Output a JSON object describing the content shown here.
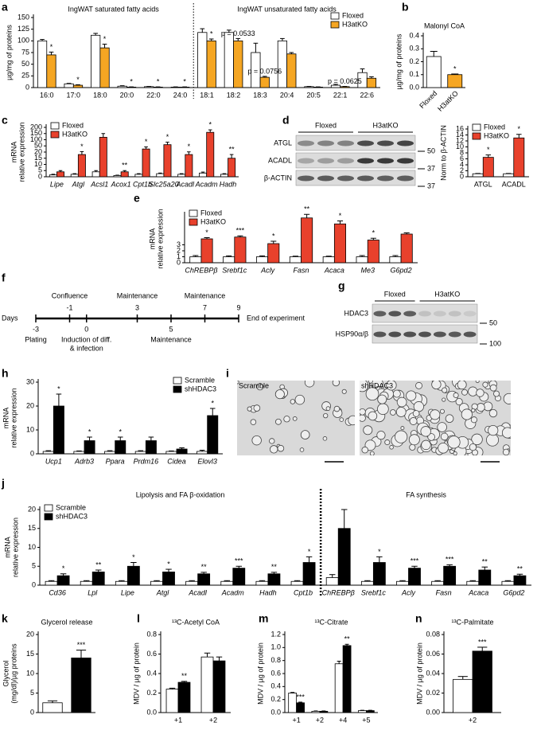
{
  "chart_data": [
    {
      "panel": "a",
      "type": "bar",
      "ylabel": [
        "µg/mg of proteins"
      ],
      "groups": [
        {
          "title": "IngWAT saturated fatty acids",
          "categories": [
            "16:0",
            "17:0",
            "18:0",
            "20:0",
            "22:0",
            "24:0"
          ]
        },
        {
          "title": "IngWAT unsaturated fatty acids",
          "categories": [
            "18:1",
            "18:2",
            "18:3",
            "20:4",
            "20:5",
            "22:1",
            "22:6"
          ]
        }
      ],
      "series": [
        {
          "name": "Floxed",
          "color": "#ffffff",
          "values": [
            100,
            8,
            112,
            3,
            2,
            1,
            118,
            118,
            75,
            100,
            2,
            5,
            32
          ],
          "errors": [
            3,
            1,
            4,
            1,
            0.5,
            0.5,
            8,
            5,
            20,
            5,
            0.5,
            2,
            8
          ]
        },
        {
          "name": "H3atKO",
          "color": "#f5a623",
          "values": [
            70,
            5,
            85,
            1,
            1,
            1,
            100,
            100,
            22,
            72,
            1,
            2,
            20
          ],
          "errors": [
            6,
            1,
            8,
            0.5,
            0.5,
            0.5,
            4,
            5,
            2,
            3,
            0.5,
            0.5,
            3
          ],
          "significance": [
            "*",
            "*",
            "*",
            "*",
            "*",
            "*",
            "*",
            "p = 0.0533",
            "p = 0.0756",
            null,
            null,
            "p = 0.0625",
            null
          ]
        }
      ],
      "ylim": [
        0,
        150
      ],
      "yticks": [
        0,
        25,
        50,
        75,
        100,
        125,
        150
      ],
      "legend": "upper right"
    },
    {
      "panel": "b",
      "type": "bar",
      "title": "Malonyl CoA",
      "ylabel": [
        "µg/mg of proteins"
      ],
      "categories": [
        "Floxed",
        "H3atKO"
      ],
      "series": [
        {
          "colors": [
            "#ffffff",
            "#f5a623"
          ],
          "values": [
            0.24,
            0.1
          ],
          "errors": [
            0.04,
            0.005
          ],
          "significance": [
            null,
            "*"
          ]
        }
      ],
      "ylim": [
        0,
        0.4
      ],
      "yticks": [
        {
          "value": 0,
          "label": "0.0"
        },
        0.1,
        0.2,
        0.3,
        0.4
      ]
    },
    {
      "panel": "c",
      "type": "bar",
      "ylabel": [
        "mRNA",
        "relative expression"
      ],
      "categories": [
        "Lipe",
        "Atgl",
        "Acsl1",
        "Acox1",
        "Cpt1b",
        "Slc25a20",
        "Acadl",
        "Acadm",
        "Hadh"
      ],
      "series": [
        {
          "name": "Floxed",
          "color": "#ffffff",
          "values": [
            1.5,
            2,
            4,
            1,
            2,
            2.5,
            2,
            3,
            2
          ],
          "errors": [
            0.5,
            0.5,
            1,
            0.3,
            0.5,
            0.5,
            0.5,
            0.8,
            0.5
          ]
        },
        {
          "name": "H3atKO",
          "color": "#e8412c",
          "values": [
            4,
            18,
            120,
            4,
            35,
            60,
            18,
            160,
            15
          ],
          "errors": [
            1,
            4,
            30,
            1,
            10,
            20,
            3,
            20,
            3
          ],
          "significance": [
            null,
            "*",
            null,
            "**",
            "*",
            "*",
            "*",
            "*",
            "**"
          ]
        }
      ],
      "ylim": [
        0,
        200
      ],
      "yticks": [
        0,
        5,
        10,
        15,
        20,
        50,
        100,
        150,
        200
      ],
      "legend": "upper left"
    },
    {
      "type": "bar",
      "ylabel": [
        "Norm to β-ACTIN"
      ],
      "categories": [
        "ATGL",
        "ACADL"
      ],
      "series": [
        {
          "name": "Floxed",
          "color": "#ffffff",
          "values": [
            1,
            1
          ],
          "errors": [
            0.1,
            0.1
          ]
        },
        {
          "name": "H3atKO",
          "color": "#e8412c",
          "values": [
            6.5,
            13
          ],
          "errors": [
            0.8,
            1.2
          ],
          "significance": [
            "*",
            "*"
          ]
        }
      ],
      "ylim": [
        0,
        16
      ],
      "yticks": [
        0,
        2,
        4,
        6,
        8,
        10,
        12,
        14,
        16
      ],
      "legend": "upper left"
    },
    {
      "panel": "e",
      "type": "bar",
      "ylabel": [
        "mRNA",
        "relative expression"
      ],
      "categories": [
        "ChREBPβ",
        "Srebf1c",
        "Acly",
        "Fasn",
        "Acaca",
        "Me3",
        "G6pd2"
      ],
      "series": [
        {
          "name": "Floxed",
          "color": "#ffffff",
          "values": [
            1,
            1,
            1,
            1,
            1,
            1,
            1
          ],
          "errors": [
            0.2,
            0.15,
            0.15,
            0.1,
            0.1,
            0.2,
            0.2
          ]
        },
        {
          "name": "H3atKO",
          "color": "#e8412c",
          "values": [
            4,
            4.3,
            3.2,
            7.5,
            6.5,
            3.8,
            4.8
          ],
          "errors": [
            0.2,
            0.2,
            0.4,
            0.6,
            0.5,
            0.3,
            0.2
          ],
          "significance": [
            "*",
            "***",
            "*",
            "**",
            "*",
            "*",
            null
          ]
        }
      ],
      "ylim": [
        0,
        8
      ],
      "yticks": [
        0,
        1,
        2,
        3
      ],
      "legend": "upper left"
    },
    {
      "panel": "h",
      "type": "bar",
      "ylabel": [
        "mRNA",
        "relative expression"
      ],
      "categories": [
        "Ucp1",
        "Adrb3",
        "Ppara",
        "Prdm16",
        "Cidea",
        "Elovl3"
      ],
      "series": [
        {
          "name": "Scramble",
          "color": "#ffffff",
          "values": [
            1,
            1,
            1,
            1,
            1,
            1
          ],
          "errors": [
            0.3,
            0.2,
            0.3,
            0.3,
            0.2,
            0.5
          ]
        },
        {
          "name": "shHDAC3",
          "color": "#000000",
          "values": [
            20,
            5.5,
            5.5,
            5.5,
            2,
            16
          ],
          "errors": [
            5,
            1.5,
            1.5,
            1.5,
            0.5,
            3
          ],
          "significance": [
            "*",
            "*",
            "*",
            null,
            null,
            "*"
          ]
        }
      ],
      "ylim": [
        0,
        30
      ],
      "yticks": [
        0,
        10,
        20,
        30
      ],
      "legend": "upper right"
    },
    {
      "panel": "j",
      "type": "bar",
      "ylabel": [
        "mRNA",
        "relative expression"
      ],
      "groups": [
        {
          "title": "Lipolysis and FA β-oxidation",
          "categories": [
            "Cd36",
            "Lpl",
            "Lipe",
            "Atgl",
            "Acadl",
            "Acadm",
            "Hadh",
            "Cpt1b"
          ]
        },
        {
          "title": "FA synthesis",
          "categories": [
            "ChREBPβ",
            "Srebf1c",
            "Acly",
            "Fasn",
            "Acaca",
            "G6pd2"
          ]
        }
      ],
      "series": [
        {
          "name": "Scramble",
          "color": "#ffffff",
          "values": [
            1,
            1,
            1,
            1,
            1,
            1,
            1,
            1,
            2,
            1,
            1,
            1,
            1,
            1
          ],
          "errors": [
            0.2,
            0.2,
            0.2,
            0.2,
            0.2,
            0.2,
            0.2,
            0.2,
            0.8,
            0.2,
            0.2,
            0.2,
            0.2,
            0.2
          ]
        },
        {
          "name": "shHDAC3",
          "color": "#000000",
          "values": [
            2.5,
            3.5,
            5,
            3.5,
            3,
            4.5,
            3,
            6,
            15,
            6,
            4.5,
            5,
            4,
            2.5
          ],
          "errors": [
            0.5,
            0.5,
            1,
            0.7,
            0.4,
            0.5,
            0.4,
            1.5,
            5,
            1.5,
            0.5,
            0.4,
            0.8,
            0.4
          ],
          "significance": [
            "*",
            "**",
            "*",
            "*",
            "**",
            "***",
            "**",
            "*",
            null,
            "*",
            "***",
            "***",
            "**",
            "**"
          ]
        }
      ],
      "ylim": [
        0,
        20
      ],
      "yticks": [
        0,
        5,
        10,
        15,
        20
      ],
      "legend": "upper left"
    },
    {
      "panel": "k",
      "type": "bar",
      "title": "Glycerol release",
      "ylabel": [
        "Glycerol",
        "(mg/dl)/µg proteins"
      ],
      "categories": [
        null,
        null
      ],
      "series": [
        {
          "colors": [
            "#ffffff",
            "#000000"
          ],
          "values": [
            2.5,
            14
          ],
          "errors": [
            0.5,
            2
          ],
          "significance": [
            null,
            "***"
          ]
        }
      ],
      "ylim": [
        0,
        20
      ],
      "yticks": [
        0,
        5,
        10,
        15,
        20
      ]
    },
    {
      "panel": "l",
      "type": "bar",
      "title": "¹³C-Acetyl CoA",
      "ylabel": [
        "MDV / µg of protein"
      ],
      "categories": [
        "+1",
        "+2"
      ],
      "series": [
        {
          "color": "#ffffff",
          "values": [
            0.24,
            0.57
          ],
          "errors": [
            0.01,
            0.04
          ]
        },
        {
          "color": "#000000",
          "values": [
            0.31,
            0.53
          ],
          "errors": [
            0.01,
            0.04
          ],
          "significance": [
            "**",
            null
          ]
        }
      ],
      "ylim": [
        0,
        0.8
      ],
      "yticks": [
        {
          "value": 0,
          "label": "0.0"
        },
        0.2,
        0.4,
        0.6,
        0.8
      ]
    },
    {
      "panel": "m",
      "type": "bar",
      "title": "¹³C-Citrate",
      "ylabel": [
        "MDV / µg of protein"
      ],
      "categories": [
        "+1",
        "+2",
        "+4",
        "+5"
      ],
      "series": [
        {
          "color": "#ffffff",
          "values": [
            0.3,
            0.02,
            0.75,
            0.03
          ],
          "errors": [
            0.01,
            0.005,
            0.04,
            0.005
          ]
        },
        {
          "color": "#000000",
          "values": [
            0.15,
            0.02,
            1.03,
            0.03
          ],
          "errors": [
            0.01,
            0.005,
            0.02,
            0.005
          ],
          "significance": [
            "***",
            null,
            "**",
            null
          ]
        }
      ],
      "ylim": [
        0,
        1.2
      ],
      "yticks": [
        {
          "value": 0,
          "label": "0.0"
        },
        0.2,
        0.4,
        0.6,
        0.8,
        {
          "value": 1,
          "label": "1.0"
        },
        1.2
      ]
    },
    {
      "panel": "n",
      "type": "bar",
      "title": "¹³C-Palmitate",
      "ylabel": [
        "MDV / µg of protein"
      ],
      "categories": [
        "+2"
      ],
      "series": [
        {
          "color": "#ffffff",
          "values": [
            0.034
          ],
          "errors": [
            0.003
          ]
        },
        {
          "color": "#000000",
          "values": [
            0.063
          ],
          "errors": [
            0.004
          ],
          "significance": [
            "***"
          ]
        }
      ],
      "ylim": [
        0,
        0.08
      ],
      "yticks": [
        {
          "value": 0,
          "label": "0.00"
        },
        0.02,
        0.04,
        0.06,
        0.08
      ]
    }
  ],
  "blots": [
    {
      "panel": "d",
      "groups": [
        "Floxed",
        "H3atKO"
      ],
      "rows": [
        {
          "label": "ATGL",
          "marker": 50
        },
        {
          "label": "ACADL",
          "marker": 37
        },
        {
          "label": "β-ACTIN",
          "marker": 37
        }
      ]
    },
    {
      "panel": "g",
      "groups": [
        "Floxed",
        "H3atKO"
      ],
      "rows": [
        {
          "label": "HDAC3",
          "marker": 50
        },
        {
          "label": "HSP90α/β",
          "marker": 100
        }
      ]
    }
  ],
  "timeline": {
    "panel": "f",
    "axis_label": "Days",
    "events": [
      {
        "day": -3,
        "label": "Plating",
        "side": "below"
      },
      {
        "day": -1,
        "label": "Confluence",
        "side": "above"
      },
      {
        "day": 0,
        "label": [
          "Induction of diff.",
          "& infection"
        ],
        "side": "below"
      },
      {
        "day": 3,
        "label": "Maintenance",
        "side": "above"
      },
      {
        "day": 5,
        "label": "Maintenance",
        "side": "below"
      },
      {
        "day": 7,
        "label": "Maintenance",
        "side": "above"
      },
      {
        "day": 9,
        "label": "End of experiment",
        "side": "end"
      }
    ]
  },
  "micrographs": {
    "panel": "i",
    "images": [
      "Scramble",
      "shHDAC3"
    ]
  }
}
